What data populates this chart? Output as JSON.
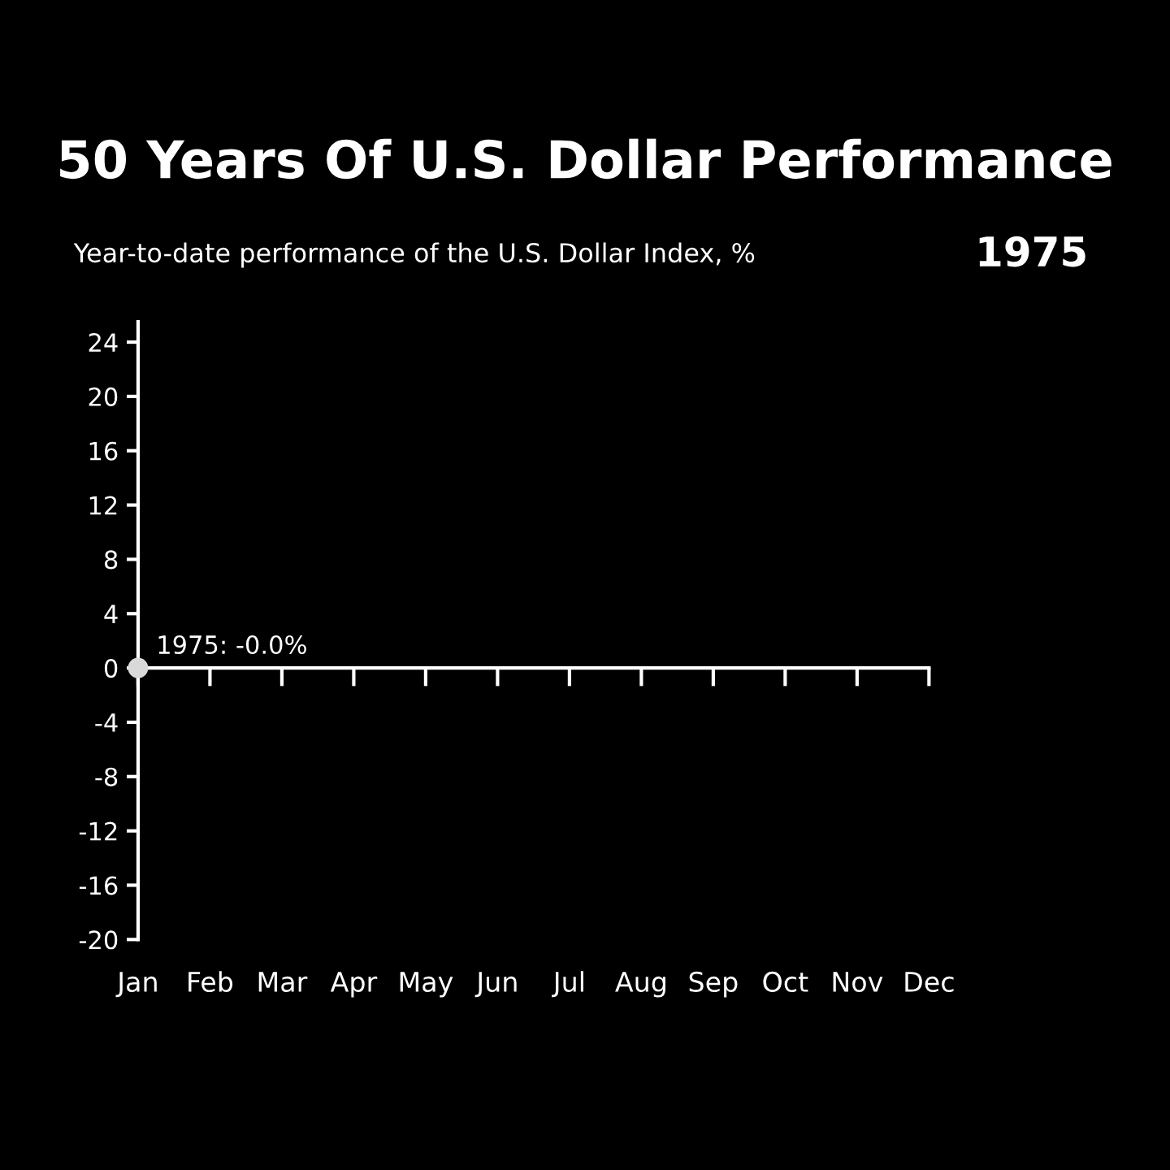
{
  "chart_data": {
    "type": "line",
    "title": "50 Years Of U.S. Dollar Performance",
    "subtitle": "Year-to-date performance of the U.S. Dollar Index, %",
    "annotations": [
      "1975"
    ],
    "categories": [
      "Jan",
      "Feb",
      "Mar",
      "Apr",
      "May",
      "Jun",
      "Jul",
      "Aug",
      "Sep",
      "Oct",
      "Nov",
      "Dec"
    ],
    "series": [
      {
        "color": "#d9d9d9",
        "values": [
          0,
          null,
          null,
          null,
          null,
          null,
          null,
          null,
          null,
          null,
          null,
          null
        ],
        "value_labels": [
          "1975: -0.0%",
          null,
          null,
          null,
          null,
          null,
          null,
          null,
          null,
          null,
          null,
          null
        ]
      }
    ],
    "ylim": [
      -20,
      25.5
    ],
    "yticks": [
      -20,
      -16,
      -12,
      -8,
      -4,
      0,
      4,
      8,
      12,
      16,
      20,
      24
    ],
    "marker": "circle"
  }
}
